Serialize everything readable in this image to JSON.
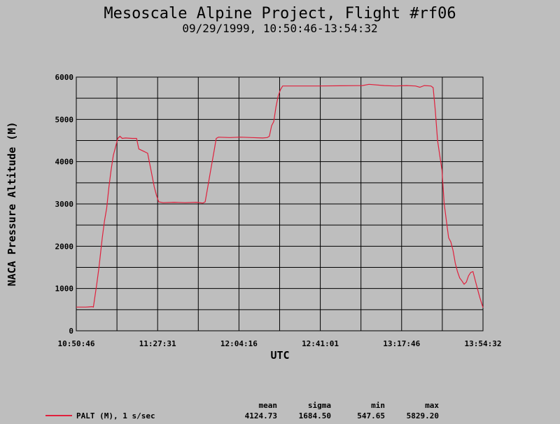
{
  "chart_data": {
    "type": "line",
    "title": "Mesoscale Alpine Project, Flight #rf06",
    "subtitle": "09/29/1999, 10:50:46-13:54:32",
    "xlabel": "UTC",
    "ylabel": "NACA Pressure Altitude (M)",
    "ylim": [
      0,
      6000
    ],
    "xlim": [
      "10:50:46",
      "13:54:32"
    ],
    "x_ticks": [
      "10:50:46",
      "11:27:31",
      "12:04:16",
      "12:41:01",
      "13:17:46",
      "13:54:32"
    ],
    "y_ticks": [
      "0",
      "1000",
      "2000",
      "3000",
      "4000",
      "5000",
      "6000"
    ],
    "grid": true,
    "series": [
      {
        "name": "PALT (M), 1 s/sec",
        "color": "#e0203c",
        "points": [
          [
            "10:50:46",
            560
          ],
          [
            "10:55:00",
            560
          ],
          [
            "10:58:00",
            570
          ],
          [
            "10:58:30",
            560
          ],
          [
            "11:00:00",
            1100
          ],
          [
            "11:01:00",
            1500
          ],
          [
            "11:02:30",
            2200
          ],
          [
            "11:03:30",
            2600
          ],
          [
            "11:04:30",
            2900
          ],
          [
            "11:05:30",
            3400
          ],
          [
            "11:06:30",
            3800
          ],
          [
            "11:07:30",
            4150
          ],
          [
            "11:08:30",
            4350
          ],
          [
            "11:09:30",
            4550
          ],
          [
            "11:10:30",
            4600
          ],
          [
            "11:11:30",
            4550
          ],
          [
            "11:13:00",
            4560
          ],
          [
            "11:16:00",
            4550
          ],
          [
            "11:18:00",
            4550
          ],
          [
            "11:19:00",
            4300
          ],
          [
            "11:21:00",
            4250
          ],
          [
            "11:23:00",
            4200
          ],
          [
            "11:24:30",
            3800
          ],
          [
            "11:26:00",
            3400
          ],
          [
            "11:27:00",
            3200
          ],
          [
            "11:28:00",
            3050
          ],
          [
            "11:30:00",
            3030
          ],
          [
            "11:35:00",
            3040
          ],
          [
            "11:40:00",
            3030
          ],
          [
            "11:45:00",
            3040
          ],
          [
            "11:48:00",
            3020
          ],
          [
            "11:49:00",
            3050
          ],
          [
            "11:50:00",
            3350
          ],
          [
            "11:51:30",
            3800
          ],
          [
            "11:53:00",
            4250
          ],
          [
            "11:54:00",
            4550
          ],
          [
            "11:55:00",
            4580
          ],
          [
            "12:00:00",
            4570
          ],
          [
            "12:05:00",
            4580
          ],
          [
            "12:10:00",
            4570
          ],
          [
            "12:15:00",
            4560
          ],
          [
            "12:17:00",
            4570
          ],
          [
            "12:18:00",
            4600
          ],
          [
            "12:19:00",
            4850
          ],
          [
            "12:20:00",
            4950
          ],
          [
            "12:21:00",
            5300
          ],
          [
            "12:22:00",
            5550
          ],
          [
            "12:23:00",
            5700
          ],
          [
            "12:24:00",
            5790
          ],
          [
            "12:30:00",
            5790
          ],
          [
            "12:40:00",
            5790
          ],
          [
            "12:50:00",
            5795
          ],
          [
            "13:00:00",
            5800
          ],
          [
            "13:03:00",
            5829
          ],
          [
            "13:10:00",
            5800
          ],
          [
            "13:15:00",
            5790
          ],
          [
            "13:20:00",
            5800
          ],
          [
            "13:24:00",
            5790
          ],
          [
            "13:26:00",
            5760
          ],
          [
            "13:28:00",
            5800
          ],
          [
            "13:31:00",
            5790
          ],
          [
            "13:32:00",
            5750
          ],
          [
            "13:33:00",
            5200
          ],
          [
            "13:34:00",
            4500
          ],
          [
            "13:35:00",
            4150
          ],
          [
            "13:36:00",
            3800
          ],
          [
            "13:37:00",
            3000
          ],
          [
            "13:38:00",
            2600
          ],
          [
            "13:39:00",
            2200
          ],
          [
            "13:40:00",
            2100
          ],
          [
            "13:41:00",
            1900
          ],
          [
            "13:42:00",
            1600
          ],
          [
            "13:43:00",
            1400
          ],
          [
            "13:44:00",
            1250
          ],
          [
            "13:45:00",
            1180
          ],
          [
            "13:46:00",
            1100
          ],
          [
            "13:47:00",
            1150
          ],
          [
            "13:48:00",
            1300
          ],
          [
            "13:49:00",
            1380
          ],
          [
            "13:50:00",
            1400
          ],
          [
            "13:51:00",
            1200
          ],
          [
            "13:52:00",
            1000
          ],
          [
            "13:53:00",
            800
          ],
          [
            "13:54:32",
            548
          ]
        ]
      }
    ],
    "legend": {
      "label": "PALT (M), 1 s/sec",
      "stat_headers": [
        "mean",
        "sigma",
        "min",
        "max"
      ],
      "stat_values": [
        "4124.73",
        "1684.50",
        "547.65",
        "5829.20"
      ]
    }
  }
}
